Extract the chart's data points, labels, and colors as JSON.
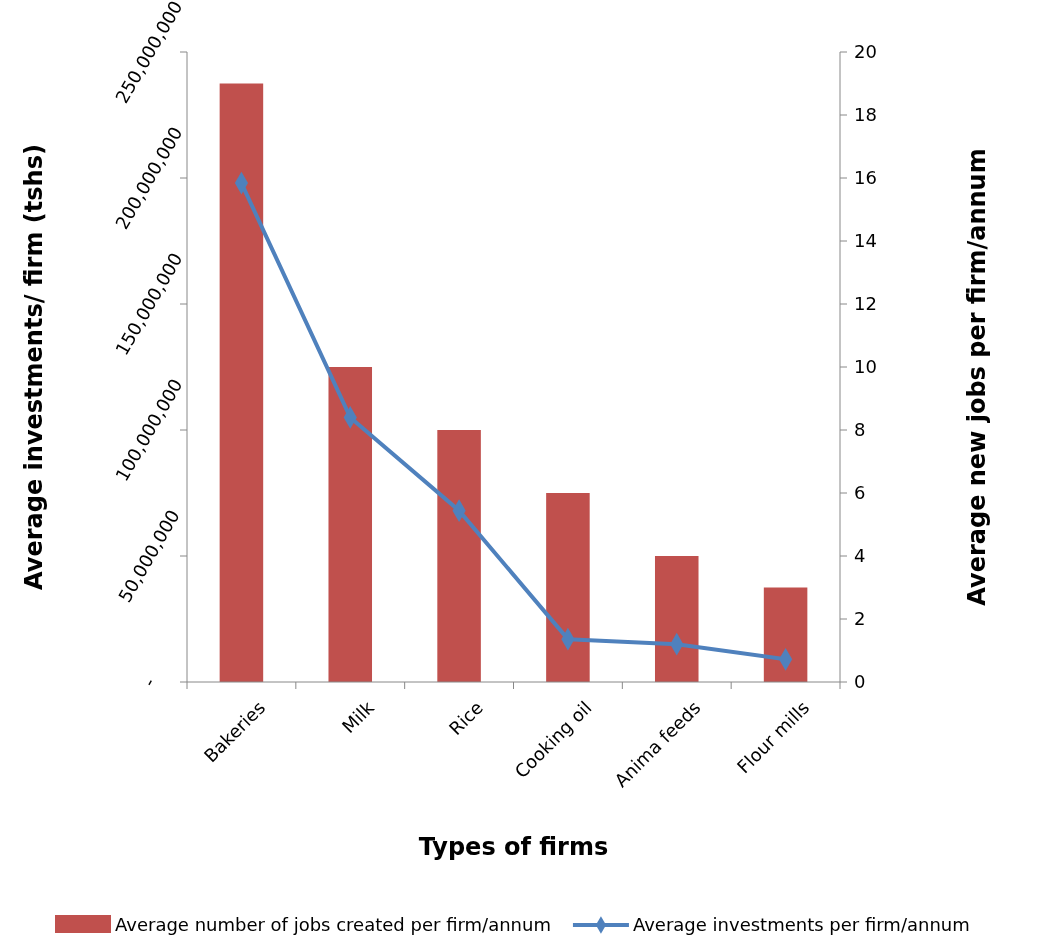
{
  "chart_data": {
    "type": "bar",
    "categories": [
      "Bakeries",
      "Milk",
      "Rice",
      "Cooking oil",
      "Anima feeds",
      "Flour mills"
    ],
    "xlabel": "Types of firms",
    "ylabel": "Average  investments/ firm (tshs)",
    "y2label": "Average new jobs per firm/annum",
    "ylim": [
      0,
      250000000
    ],
    "yticks": [
      {
        "value": 0,
        "label": "-"
      },
      {
        "value": 50000000,
        "label": "50,000,000"
      },
      {
        "value": 100000000,
        "label": "100,000,000"
      },
      {
        "value": 150000000,
        "label": "150,000,000"
      },
      {
        "value": 200000000,
        "label": "200,000,000"
      },
      {
        "value": 250000000,
        "label": "250,000,000"
      }
    ],
    "y2lim": [
      0,
      20
    ],
    "y2ticks": [
      0,
      2,
      4,
      6,
      8,
      10,
      12,
      14,
      16,
      18,
      20
    ],
    "series": [
      {
        "name": "Average number of jobs created per firm/annum",
        "type": "bar",
        "axis": "y2",
        "color": "#c0504d",
        "values": [
          19,
          10,
          8,
          6,
          4,
          3
        ]
      },
      {
        "name": "Average investments per firm/annum",
        "type": "line",
        "axis": "y",
        "color": "#4f81bd",
        "marker": "diamond",
        "values": [
          198000000,
          105000000,
          68000000,
          17000000,
          15000000,
          9000000
        ]
      }
    ],
    "legend": "bottom",
    "grid": false
  }
}
